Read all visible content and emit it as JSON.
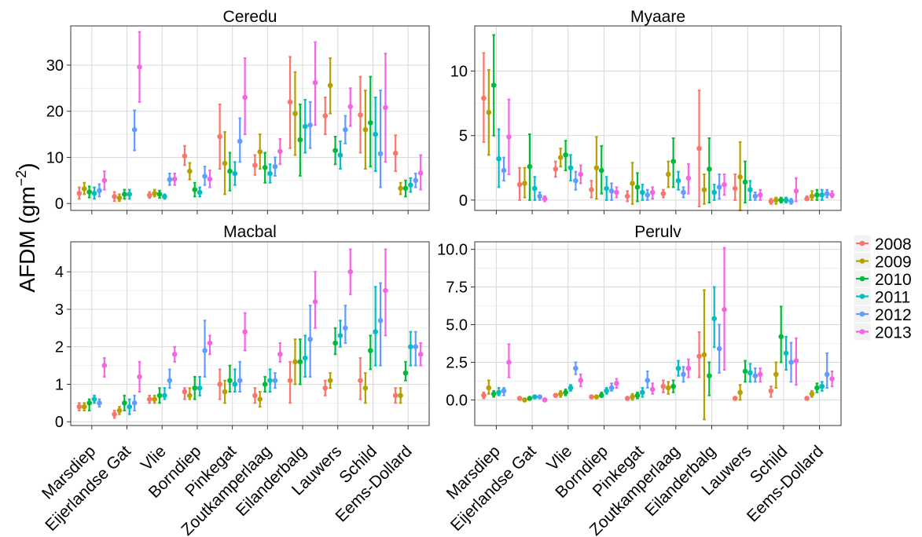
{
  "chart_data": {
    "type": "scatter",
    "ylabel": "AFDM (gm",
    "ylabel_sup": "−2",
    "ylabel_close": ")",
    "legend_position": "right",
    "grid": true,
    "categories": [
      "Marsdiep",
      "Eijerlandse Gat",
      "Vlie",
      "Borndiep",
      "Pinkegat",
      "Zoutkamperlaag",
      "Eilanderbalg",
      "Lauwers",
      "Schild",
      "Eems-Dollard"
    ],
    "series": [
      {
        "name": "2008",
        "color": "#F8766D"
      },
      {
        "name": "2009",
        "color": "#B79F00"
      },
      {
        "name": "2010",
        "color": "#00BA38"
      },
      {
        "name": "2011",
        "color": "#00BFC4"
      },
      {
        "name": "2012",
        "color": "#619CFF"
      },
      {
        "name": "2013",
        "color": "#F564E3"
      }
    ],
    "panels": [
      {
        "title": "Ceredu",
        "ylim": [
          -1.5,
          38.5
        ],
        "yticks": [
          0,
          10,
          20,
          30
        ],
        "ytick_labels": [
          "0",
          "10",
          "20",
          "30"
        ],
        "mean": [
          [
            2.2,
            1.5,
            1.8,
            10.3,
            14.5,
            8.3,
            22.0,
            19.0,
            19.2,
            10.9
          ],
          [
            3.2,
            1.2,
            2.2,
            7.0,
            8.7,
            11.2,
            19.5,
            25.6,
            16.0,
            3.3
          ],
          [
            2.5,
            2.0,
            2.0,
            3.0,
            7.0,
            7.8,
            13.8,
            11.5,
            17.5,
            3.3
          ],
          [
            2.2,
            2.0,
            1.5,
            2.4,
            6.5,
            6.5,
            16.7,
            10.5,
            15.0,
            4.0
          ],
          [
            2.8,
            16.0,
            5.2,
            5.9,
            13.5,
            8.0,
            17.0,
            16.0,
            10.8,
            5.0
          ],
          [
            5.0,
            29.6,
            5.3,
            5.3,
            23.0,
            11.3,
            26.2,
            21.0,
            20.8,
            6.6
          ]
        ],
        "lower": [
          [
            1.0,
            0.5,
            1.2,
            8.3,
            7.5,
            6.2,
            12.0,
            15.0,
            11.0,
            7.0
          ],
          [
            2.0,
            0.5,
            1.5,
            5.2,
            2.0,
            7.5,
            10.5,
            19.5,
            7.5,
            2.0
          ],
          [
            1.3,
            1.0,
            1.2,
            1.5,
            2.8,
            4.5,
            6.0,
            8.5,
            8.0,
            1.5
          ],
          [
            1.0,
            1.0,
            1.0,
            1.5,
            4.0,
            4.5,
            11.0,
            7.5,
            7.0,
            2.5
          ],
          [
            1.5,
            11.5,
            4.0,
            4.0,
            9.0,
            6.0,
            12.0,
            13.0,
            3.5,
            3.5
          ],
          [
            3.0,
            22.0,
            4.0,
            3.5,
            15.0,
            8.5,
            17.0,
            16.8,
            9.0,
            3.0
          ]
        ],
        "upper": [
          [
            3.5,
            2.5,
            2.5,
            12.5,
            21.5,
            10.5,
            31.8,
            23.0,
            27.5,
            14.8
          ],
          [
            4.5,
            2.0,
            3.0,
            8.8,
            15.5,
            15.0,
            28.5,
            31.5,
            24.5,
            4.5
          ],
          [
            3.7,
            3.0,
            2.8,
            4.5,
            11.0,
            11.0,
            21.5,
            14.5,
            27.5,
            5.0
          ],
          [
            3.5,
            3.0,
            2.0,
            3.5,
            9.0,
            8.5,
            22.5,
            13.5,
            23.0,
            5.5
          ],
          [
            4.2,
            20.2,
            6.5,
            8.0,
            18.5,
            10.0,
            22.0,
            19.0,
            24.5,
            6.5
          ],
          [
            7.0,
            37.2,
            6.5,
            7.2,
            31.5,
            14.0,
            35.0,
            25.0,
            32.5,
            10.5
          ]
        ]
      },
      {
        "title": "Myaare",
        "ylim": [
          -0.8,
          13.5
        ],
        "yticks": [
          0,
          5,
          10
        ],
        "ytick_labels": [
          "0",
          "5",
          "10"
        ],
        "mean": [
          [
            7.9,
            1.2,
            2.4,
            0.8,
            0.3,
            0.5,
            4.0,
            0.9,
            -0.1,
            0.1
          ],
          [
            6.8,
            1.3,
            3.3,
            2.5,
            1.3,
            2.0,
            0.8,
            1.8,
            0.0,
            0.3
          ],
          [
            8.9,
            2.6,
            3.5,
            2.3,
            1.0,
            3.0,
            2.4,
            1.4,
            0.0,
            0.4
          ],
          [
            3.2,
            0.9,
            2.5,
            0.9,
            0.6,
            1.5,
            0.6,
            0.8,
            0.0,
            0.4
          ],
          [
            2.3,
            0.3,
            1.5,
            0.7,
            0.4,
            0.6,
            1.0,
            0.3,
            -0.1,
            0.5
          ],
          [
            4.9,
            0.1,
            2.0,
            0.6,
            0.6,
            1.7,
            1.2,
            0.4,
            0.7,
            0.4
          ]
        ],
        "lower": [
          [
            4.5,
            0.0,
            1.8,
            0.2,
            -0.1,
            0.2,
            -0.5,
            0.0,
            -0.3,
            0.0
          ],
          [
            3.5,
            0.2,
            2.6,
            0.1,
            -0.3,
            1.0,
            -0.3,
            -0.8,
            -0.3,
            0.0
          ],
          [
            5.0,
            0.0,
            2.3,
            0.5,
            -0.1,
            1.0,
            -0.2,
            -0.2,
            -0.2,
            0.0
          ],
          [
            1.0,
            0.0,
            1.5,
            0.0,
            0.0,
            0.8,
            0.0,
            0.0,
            -0.2,
            0.0
          ],
          [
            1.5,
            0.0,
            0.8,
            0.0,
            0.0,
            0.2,
            0.1,
            0.0,
            -0.3,
            0.2
          ],
          [
            2.0,
            -0.1,
            1.3,
            0.2,
            0.1,
            0.5,
            0.4,
            0.0,
            -0.1,
            0.2
          ]
        ],
        "upper": [
          [
            11.4,
            2.5,
            3.0,
            1.5,
            0.7,
            0.8,
            8.5,
            2.0,
            0.1,
            0.3
          ],
          [
            10.1,
            2.5,
            4.0,
            4.9,
            2.9,
            3.0,
            2.0,
            4.5,
            0.2,
            0.7
          ],
          [
            12.8,
            5.1,
            4.6,
            4.2,
            2.1,
            4.8,
            4.8,
            3.0,
            0.2,
            0.8
          ],
          [
            5.5,
            1.8,
            3.5,
            1.8,
            1.2,
            2.2,
            1.2,
            1.5,
            0.2,
            0.8
          ],
          [
            3.3,
            0.6,
            2.2,
            1.3,
            0.8,
            1.0,
            2.0,
            0.6,
            0.1,
            0.8
          ],
          [
            7.8,
            0.3,
            2.7,
            1.0,
            1.0,
            2.8,
            2.0,
            0.8,
            1.7,
            0.7
          ]
        ]
      },
      {
        "title": "Macbal",
        "ylim": [
          -0.1,
          4.8
        ],
        "yticks": [
          0,
          1,
          2,
          3,
          4
        ],
        "ytick_labels": [
          "0",
          "1",
          "2",
          "3",
          "4"
        ],
        "mean": [
          [
            0.4,
            0.2,
            0.6,
            0.8,
            1.0,
            0.7,
            1.1,
            0.9,
            1.1,
            0.7
          ],
          [
            0.4,
            0.3,
            0.6,
            0.7,
            0.8,
            0.6,
            1.6,
            1.1,
            0.9,
            0.7
          ],
          [
            0.5,
            0.5,
            0.7,
            0.9,
            1.1,
            1.0,
            1.6,
            2.1,
            1.9,
            1.3
          ],
          [
            0.6,
            0.4,
            0.7,
            0.9,
            1.0,
            1.1,
            1.7,
            2.3,
            2.4,
            2.0
          ],
          [
            0.5,
            0.5,
            1.1,
            1.9,
            1.1,
            1.1,
            2.2,
            2.5,
            2.7,
            2.0
          ],
          [
            1.5,
            1.2,
            1.8,
            2.1,
            2.4,
            1.8,
            3.2,
            4.0,
            3.5,
            1.8
          ]
        ],
        "lower": [
          [
            0.3,
            0.1,
            0.5,
            0.6,
            0.6,
            0.5,
            0.5,
            0.7,
            0.6,
            0.5
          ],
          [
            0.3,
            0.2,
            0.5,
            0.6,
            0.5,
            0.4,
            1.0,
            0.9,
            0.5,
            0.5
          ],
          [
            0.3,
            0.3,
            0.5,
            0.6,
            0.8,
            0.8,
            1.0,
            1.8,
            1.4,
            1.1
          ],
          [
            0.5,
            0.2,
            0.6,
            0.7,
            0.8,
            0.8,
            1.2,
            2.0,
            1.5,
            1.5
          ],
          [
            0.4,
            0.3,
            0.9,
            1.2,
            0.8,
            0.9,
            1.2,
            2.1,
            1.5,
            1.5
          ],
          [
            1.2,
            0.8,
            1.6,
            1.8,
            1.9,
            1.6,
            2.5,
            3.4,
            2.3,
            1.5
          ]
        ],
        "upper": [
          [
            0.5,
            0.3,
            0.7,
            0.9,
            1.4,
            0.9,
            1.6,
            1.1,
            1.7,
            0.9
          ],
          [
            0.5,
            0.4,
            0.7,
            0.9,
            1.1,
            0.8,
            2.2,
            1.3,
            1.3,
            0.9
          ],
          [
            0.6,
            0.7,
            0.9,
            1.2,
            1.5,
            1.2,
            2.2,
            2.5,
            2.3,
            1.6
          ],
          [
            0.7,
            0.6,
            0.9,
            1.2,
            1.4,
            1.4,
            2.3,
            2.7,
            3.6,
            2.4
          ],
          [
            0.6,
            0.7,
            1.4,
            2.7,
            1.6,
            1.3,
            3.1,
            3.1,
            3.7,
            2.4
          ],
          [
            1.7,
            1.6,
            2.0,
            2.3,
            2.9,
            2.1,
            4.0,
            4.6,
            4.6,
            2.1
          ]
        ]
      },
      {
        "title": "Perulv",
        "ylim": [
          -1.7,
          10.5
        ],
        "yticks": [
          0,
          2.5,
          5,
          7.5,
          10
        ],
        "ytick_labels": [
          "0.0",
          "2.5",
          "5.0",
          "7.5",
          "10.0"
        ],
        "mean": [
          [
            0.3,
            0.1,
            0.3,
            0.2,
            0.1,
            0.9,
            2.9,
            0.1,
            0.6,
            0.1
          ],
          [
            0.8,
            0.0,
            0.4,
            0.2,
            0.2,
            0.8,
            3.0,
            0.5,
            1.7,
            0.4
          ],
          [
            0.4,
            0.1,
            0.5,
            0.3,
            0.3,
            0.9,
            1.6,
            1.9,
            4.2,
            0.8
          ],
          [
            0.5,
            0.2,
            0.8,
            0.6,
            0.5,
            2.1,
            5.4,
            1.8,
            3.1,
            0.9
          ],
          [
            0.6,
            0.2,
            2.1,
            0.8,
            1.3,
            1.7,
            3.4,
            1.6,
            2.5,
            1.7
          ],
          [
            2.5,
            0.0,
            1.3,
            1.1,
            0.7,
            2.1,
            6.0,
            1.7,
            2.6,
            1.4
          ]
        ],
        "lower": [
          [
            0.1,
            0.0,
            0.2,
            0.1,
            0.0,
            0.5,
            1.5,
            0.0,
            0.2,
            0.0
          ],
          [
            0.4,
            -0.1,
            0.2,
            0.1,
            0.0,
            0.4,
            -1.3,
            0.0,
            0.8,
            0.2
          ],
          [
            0.2,
            0.0,
            0.3,
            0.2,
            0.1,
            0.5,
            0.3,
            1.2,
            2.5,
            0.5
          ],
          [
            0.3,
            0.1,
            0.6,
            0.4,
            0.2,
            1.6,
            3.5,
            1.2,
            2.0,
            0.6
          ],
          [
            0.3,
            0.1,
            1.7,
            0.6,
            0.8,
            1.2,
            1.8,
            1.2,
            1.2,
            0.8
          ],
          [
            1.5,
            -0.1,
            0.9,
            0.8,
            0.4,
            1.5,
            2.0,
            1.2,
            1.0,
            0.9
          ]
        ],
        "upper": [
          [
            0.5,
            0.2,
            0.4,
            0.3,
            0.2,
            1.3,
            4.5,
            0.2,
            0.9,
            0.2
          ],
          [
            1.3,
            0.1,
            0.6,
            0.3,
            0.4,
            1.2,
            7.3,
            1.0,
            2.5,
            0.6
          ],
          [
            0.6,
            0.2,
            0.7,
            0.5,
            0.5,
            1.3,
            2.5,
            2.6,
            6.2,
            1.1
          ],
          [
            0.8,
            0.3,
            1.0,
            0.8,
            0.8,
            2.6,
            7.5,
            2.4,
            4.2,
            1.2
          ],
          [
            0.8,
            0.3,
            2.5,
            1.1,
            1.9,
            2.2,
            5.0,
            2.1,
            3.8,
            3.1
          ],
          [
            3.7,
            0.1,
            1.7,
            1.4,
            1.1,
            2.7,
            10.1,
            2.1,
            4.1,
            1.9
          ]
        ]
      }
    ]
  }
}
